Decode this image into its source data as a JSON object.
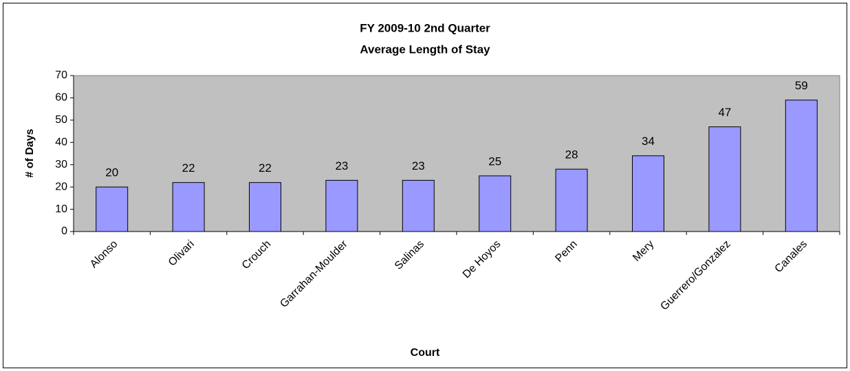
{
  "chart_data": {
    "type": "bar",
    "title": "FY 2009-10 2nd Quarter",
    "subtitle": "Average Length of Stay",
    "x_label": "Court",
    "y_label": "# of Days",
    "categories": [
      "Alonso",
      "Olivari",
      "Crouch",
      "Garrahan-Moulder",
      "Salinas",
      "De Hoyos",
      "Penn",
      "Mery",
      "Guerrero/Gonzalez",
      "Canales"
    ],
    "values": [
      20,
      22,
      22,
      23,
      23,
      25,
      28,
      34,
      47,
      59
    ],
    "color": "#9999ff",
    "plot_background": "#c0c0c0",
    "ylim": [
      0,
      70
    ],
    "yticks": [
      0,
      10,
      20,
      30,
      40,
      50,
      60,
      70
    ],
    "grid": false
  }
}
